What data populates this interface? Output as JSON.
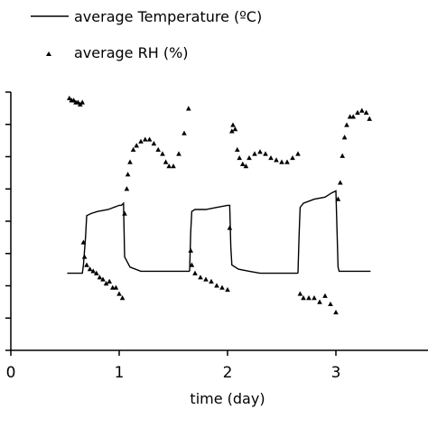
{
  "chart_data": {
    "type": "line",
    "xlabel": "time (day)",
    "xlim": [
      0,
      4
    ],
    "x_ticks": [
      "0",
      "1",
      "2",
      "3",
      "4"
    ],
    "grid": false,
    "legend_position": "top-left",
    "colors": {
      "line": "#000000",
      "marker": "#000000"
    },
    "series": [
      {
        "name": "average Temperature (ºC)",
        "style": "line",
        "segments": [
          {
            "x": [
              0.52,
              0.66,
              0.67,
              0.69,
              0.7,
              0.74,
              0.8,
              0.9,
              1.0,
              1.02,
              1.04,
              1.05,
              1.1,
              1.2,
              1.4,
              1.6,
              1.65
            ],
            "y": [
              0.12,
              0.12,
              0.16,
              0.3,
              0.4,
              0.41,
              0.42,
              0.43,
              0.45,
              0.45,
              0.46,
              0.2,
              0.15,
              0.13,
              0.13,
              0.13,
              0.13
            ]
          },
          {
            "x": [
              1.65,
              1.66,
              1.67,
              1.7,
              1.8,
              1.9,
              2.0,
              2.02,
              2.03,
              2.04,
              2.1,
              2.2,
              2.3,
              2.4,
              2.5,
              2.6,
              2.65
            ],
            "y": [
              0.13,
              0.32,
              0.42,
              0.43,
              0.43,
              0.44,
              0.45,
              0.45,
              0.25,
              0.16,
              0.14,
              0.13,
              0.12,
              0.12,
              0.12,
              0.12,
              0.12
            ]
          },
          {
            "x": [
              2.65,
              2.66,
              2.67,
              2.7,
              2.8,
              2.9,
              2.96,
              3.0,
              3.02,
              3.03,
              3.06,
              3.1,
              3.2,
              3.32
            ],
            "y": [
              0.12,
              0.3,
              0.44,
              0.46,
              0.48,
              0.49,
              0.51,
              0.52,
              0.15,
              0.13,
              0.13,
              0.13,
              0.13,
              0.13
            ]
          }
        ]
      },
      {
        "name": "average RH (%)",
        "style": "triangle-markers",
        "x": [
          0.54,
          0.56,
          0.58,
          0.6,
          0.62,
          0.64,
          0.66,
          0.68,
          0.67,
          0.7,
          0.73,
          0.76,
          0.79,
          0.82,
          0.85,
          0.88,
          0.91,
          0.94,
          0.97,
          1.0,
          1.03,
          1.05,
          1.07,
          1.08,
          1.1,
          1.13,
          1.16,
          1.2,
          1.24,
          1.28,
          1.32,
          1.36,
          1.4,
          1.43,
          1.46,
          1.5,
          1.55,
          1.6,
          1.64,
          1.66,
          1.67,
          1.7,
          1.75,
          1.8,
          1.85,
          1.9,
          1.95,
          2.0,
          2.02,
          2.04,
          2.05,
          2.07,
          2.09,
          2.11,
          2.14,
          2.17,
          2.2,
          2.25,
          2.3,
          2.35,
          2.4,
          2.45,
          2.5,
          2.55,
          2.6,
          2.65,
          2.67,
          2.7,
          2.75,
          2.8,
          2.85,
          2.9,
          2.95,
          3.0,
          3.02,
          3.04,
          3.06,
          3.08,
          3.1,
          3.13,
          3.16,
          3.2,
          3.24,
          3.28,
          3.31
        ],
        "y": [
          0.97,
          0.96,
          0.96,
          0.95,
          0.95,
          0.94,
          0.95,
          0.2,
          0.27,
          0.16,
          0.14,
          0.13,
          0.12,
          0.1,
          0.09,
          0.07,
          0.08,
          0.05,
          0.05,
          0.02,
          0.0,
          0.41,
          0.53,
          0.6,
          0.66,
          0.72,
          0.74,
          0.76,
          0.77,
          0.77,
          0.75,
          0.72,
          0.7,
          0.66,
          0.64,
          0.64,
          0.7,
          0.8,
          0.92,
          0.23,
          0.16,
          0.12,
          0.1,
          0.09,
          0.08,
          0.06,
          0.05,
          0.04,
          0.34,
          0.81,
          0.84,
          0.82,
          0.72,
          0.68,
          0.65,
          0.64,
          0.68,
          0.7,
          0.71,
          0.7,
          0.68,
          0.67,
          0.66,
          0.66,
          0.68,
          0.7,
          0.02,
          0.0,
          0.0,
          0.0,
          -0.02,
          0.01,
          -0.03,
          -0.07,
          0.48,
          0.56,
          0.69,
          0.78,
          0.84,
          0.88,
          0.88,
          0.9,
          0.91,
          0.9,
          0.87
        ]
      }
    ]
  }
}
